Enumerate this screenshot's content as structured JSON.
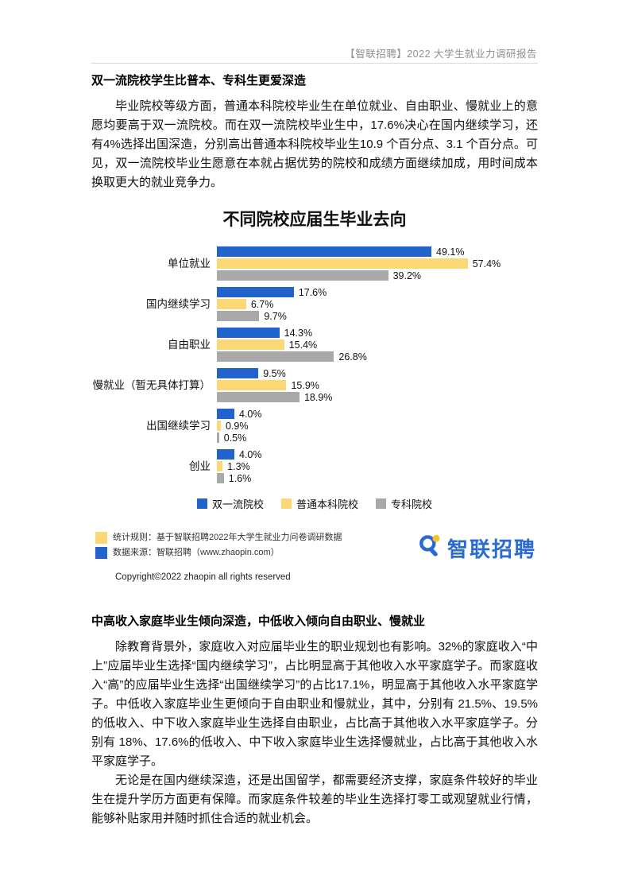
{
  "header": {
    "title": "【智联招聘】2022 大学生就业力调研报告"
  },
  "section1": {
    "heading": "双一流院校学生比普本、专科生更爱深造",
    "paragraph": "毕业院校等级方面，普通本科院校毕业生在单位就业、自由职业、慢就业上的意愿均要高于双一流院校。而在双一流院校毕业生中，17.6%决心在国内继续学习，还有4%选择出国深造，分别高出普通本科院校毕业生10.9 个百分点、3.1 个百分点。可见，双一流院校毕业生愿意在本就占据优势的院校和成绩方面继续加成，用时间成本换取更大的就业竞争力。"
  },
  "chart_data": {
    "type": "bar",
    "orientation": "horizontal",
    "title": "不同院校应届生毕业去向",
    "categories": [
      "单位就业",
      "国内继续学习",
      "自由职业",
      "慢就业（暂无具体打算）",
      "出国继续学习",
      "创业"
    ],
    "series": [
      {
        "name": "双一流院校",
        "color": "#2262CC",
        "values": [
          49.1,
          17.6,
          14.3,
          9.5,
          4.0,
          4.0
        ]
      },
      {
        "name": "普通本科院校",
        "color": "#FBD875",
        "values": [
          57.4,
          6.7,
          15.4,
          15.9,
          0.9,
          1.3
        ]
      },
      {
        "name": "专科院校",
        "color": "#A9A9A9",
        "values": [
          39.2,
          9.7,
          26.8,
          18.9,
          0.5,
          1.6
        ]
      }
    ],
    "value_suffix": "%",
    "xlim": [
      0,
      60
    ],
    "data_labels": true,
    "legend_position": "bottom",
    "grid": false
  },
  "footnotes": {
    "note1": "统计规则：基于智联招聘2022年大学生就业力问卷调研数据",
    "note2": "数据来源：智联招聘（www.zhaopin.com）",
    "copyright": "Copyright©2022 zhaopin all rights reserved"
  },
  "logo": {
    "text": "智联招聘"
  },
  "section2": {
    "heading": "中高收入家庭毕业生倾向深造，中低收入倾向自由职业、慢就业",
    "paragraph1": "除教育背景外，家庭收入对应届毕业生的职业规划也有影响。32%的家庭收入“中上”应届毕业生选择“国内继续学习”，占比明显高于其他收入水平家庭学子。而家庭收入“高”的应届毕业生选择“出国继续学习”的占比17.1%，明显高于其他收入水平家庭学子。中低收入家庭毕业生更倾向于自由职业和慢就业，其中，分别有 21.5%、19.5%的低收入、中下收入家庭毕业生选择自由职业，占比高于其他收入水平家庭学子。分别有 18%、17.6%的低收入、中下收入家庭毕业生选择慢就业，占比高于其他收入水平家庭学子。",
    "paragraph2": "无论是在国内继续深造，还是出国留学，都需要经济支撑，家庭条件较好的毕业生在提升学历方面更有保障。而家庭条件较差的毕业生选择打零工或观望就业行情，能够补贴家用并随时抓住合适的就业机会。"
  },
  "colors": {
    "series_blue": "#2262CC",
    "series_yellow": "#FBD875",
    "series_gray": "#A9A9A9",
    "logo_blue": "#2A6AD4",
    "logo_yellow": "#F7C325"
  }
}
